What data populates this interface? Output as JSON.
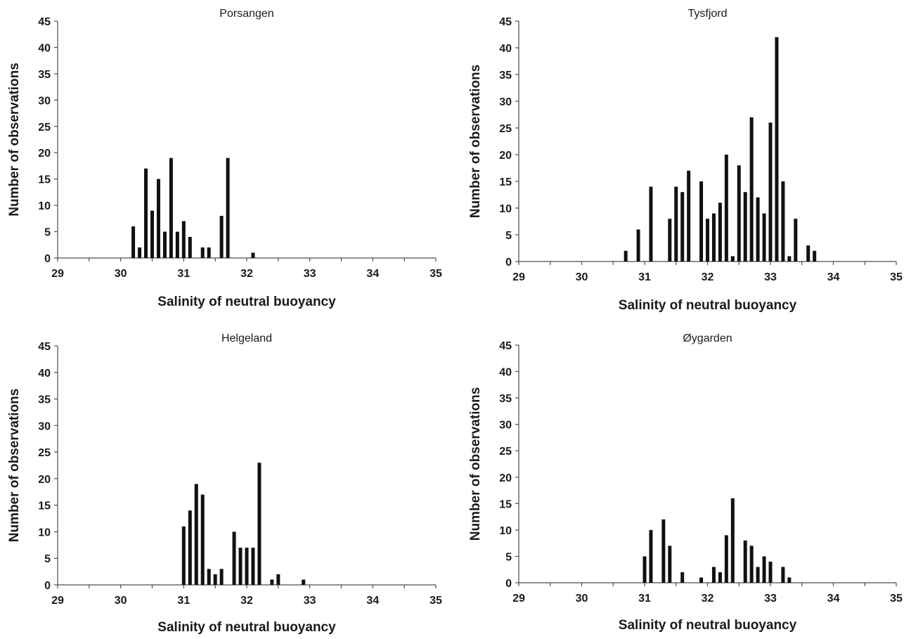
{
  "chart_data": [
    {
      "type": "bar",
      "title": "Porsangen",
      "xlabel": "Salinity of neutral buoyancy",
      "ylabel": "Number of observations",
      "xlim": [
        29,
        35
      ],
      "ylim": [
        0,
        45
      ],
      "x_ticks": [
        "29",
        "30",
        "31",
        "32",
        "33",
        "34",
        "35"
      ],
      "y_ticks": [
        "0",
        "5",
        "10",
        "15",
        "20",
        "25",
        "30",
        "35",
        "40",
        "45"
      ],
      "grid": false,
      "x": [
        30.2,
        30.3,
        30.4,
        30.5,
        30.6,
        30.7,
        30.8,
        30.9,
        31.0,
        31.1,
        31.3,
        31.4,
        31.6,
        31.7,
        32.1
      ],
      "values": [
        6,
        2,
        17,
        9,
        15,
        5,
        19,
        5,
        7,
        4,
        2,
        2,
        8,
        19,
        1
      ]
    },
    {
      "type": "bar",
      "title": "Tysfjord",
      "xlabel": "Salinity of neutral buoyancy",
      "ylabel": "Number of observations",
      "xlim": [
        29,
        35
      ],
      "ylim": [
        0,
        45
      ],
      "x_ticks": [
        "29",
        "30",
        "31",
        "32",
        "33",
        "34",
        "35"
      ],
      "y_ticks": [
        "0",
        "5",
        "10",
        "15",
        "20",
        "25",
        "30",
        "35",
        "40",
        "45"
      ],
      "grid": false,
      "x": [
        30.7,
        30.9,
        31.1,
        31.4,
        31.5,
        31.6,
        31.7,
        31.9,
        32.0,
        32.1,
        32.2,
        32.3,
        32.4,
        32.5,
        32.6,
        32.7,
        32.8,
        32.9,
        33.0,
        33.1,
        33.2,
        33.3,
        33.4,
        33.6,
        33.7
      ],
      "values": [
        2,
        6,
        14,
        8,
        14,
        13,
        17,
        15,
        8,
        9,
        11,
        20,
        1,
        18,
        13,
        27,
        12,
        9,
        26,
        42,
        15,
        1,
        8,
        3,
        2
      ]
    },
    {
      "type": "bar",
      "title": "Helgeland",
      "xlabel": "Salinity of neutral buoyancy",
      "ylabel": "Number of observations",
      "xlim": [
        29,
        35
      ],
      "ylim": [
        0,
        45
      ],
      "x_ticks": [
        "29",
        "30",
        "31",
        "32",
        "33",
        "34",
        "35"
      ],
      "y_ticks": [
        "0",
        "5",
        "10",
        "15",
        "20",
        "25",
        "30",
        "35",
        "40",
        "45"
      ],
      "grid": false,
      "x": [
        31.0,
        31.1,
        31.2,
        31.3,
        31.4,
        31.5,
        31.6,
        31.8,
        31.9,
        32.0,
        32.1,
        32.2,
        32.4,
        32.5,
        32.9
      ],
      "values": [
        11,
        14,
        19,
        17,
        3,
        2,
        3,
        10,
        7,
        7,
        7,
        23,
        1,
        2,
        1
      ]
    },
    {
      "type": "bar",
      "title": "Øygarden",
      "xlabel": "Salinity of neutral buoyancy",
      "ylabel": "Number of observations",
      "xlim": [
        29,
        35
      ],
      "ylim": [
        0,
        45
      ],
      "x_ticks": [
        "29",
        "30",
        "31",
        "32",
        "33",
        "34",
        "35"
      ],
      "y_ticks": [
        "0",
        "5",
        "10",
        "15",
        "20",
        "25",
        "30",
        "35",
        "40",
        "45"
      ],
      "grid": false,
      "x": [
        31.0,
        31.1,
        31.3,
        31.4,
        31.6,
        31.9,
        32.1,
        32.2,
        32.3,
        32.4,
        32.6,
        32.7,
        32.8,
        32.9,
        33.0,
        33.2,
        33.3
      ],
      "values": [
        5,
        10,
        12,
        7,
        2,
        1,
        3,
        2,
        9,
        16,
        8,
        7,
        3,
        5,
        4,
        3,
        1
      ]
    }
  ],
  "colors": {
    "bar": "#111111",
    "axis": "#4d4d4d",
    "text": "#1a1a1a",
    "background": "#ffffff"
  }
}
